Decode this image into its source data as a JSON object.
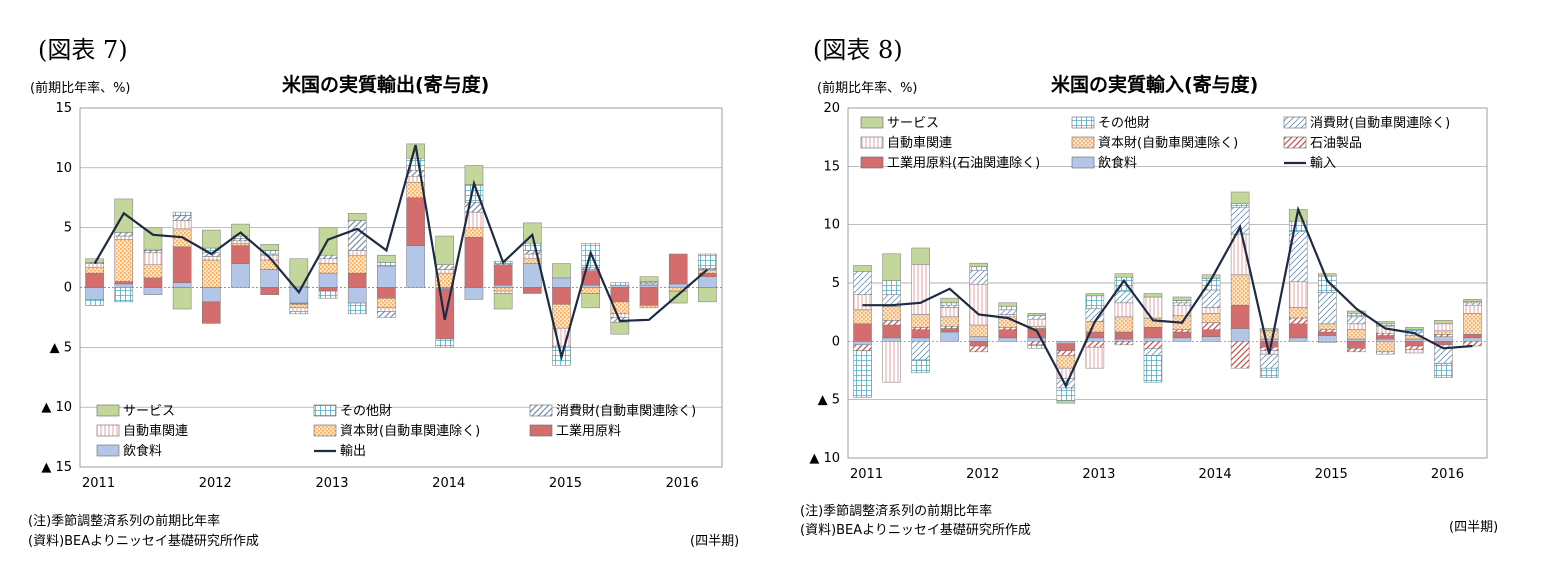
{
  "left": {
    "fig_label": "(図表 7)",
    "unit_label": "(前期比年率、%)",
    "title": "米国の実質輸出(寄与度)",
    "note": "(注)季節調整済系列の前期比年率",
    "source": "(資料)BEAよりニッセイ基礎研究所作成",
    "quarter_label": "(四半期)"
  },
  "right": {
    "fig_label": "(図表 8)",
    "unit_label": "(前期比年率、%)",
    "title": "米国の実質輸入(寄与度)",
    "note": "(注)季節調整済系列の前期比年率",
    "source": "(資料)BEAよりニッセイ基礎研究所作成",
    "quarter_label": "(四半期)"
  },
  "chart_data": [
    {
      "type": "bar",
      "stacked": true,
      "title": "米国の実質輸出(寄与度)",
      "ylim": [
        -15,
        15
      ],
      "yticks": [
        15,
        10,
        5,
        0,
        -5,
        -10,
        -15
      ],
      "ytick_labels": [
        "15",
        "10",
        "5",
        "0",
        "▲ 5",
        "▲ 10",
        "▲ 15"
      ],
      "year_labels": [
        "2011",
        "2012",
        "2013",
        "2014",
        "2015",
        "2016"
      ],
      "categories": [
        "2011Q1",
        "2011Q2",
        "2011Q3",
        "2011Q4",
        "2012Q1",
        "2012Q2",
        "2012Q3",
        "2012Q4",
        "2013Q1",
        "2013Q2",
        "2013Q3",
        "2013Q4",
        "2014Q1",
        "2014Q2",
        "2014Q3",
        "2014Q4",
        "2015Q1",
        "2015Q2",
        "2015Q3",
        "2015Q4",
        "2016Q1",
        "2016Q2"
      ],
      "grid": true,
      "legend_position": "bottom",
      "series": [
        {
          "name": "飲食料",
          "color": "#b4c6e7",
          "pattern": "solid",
          "values": [
            -1.0,
            0.3,
            -0.6,
            0.4,
            -1.2,
            2.0,
            1.5,
            -1.3,
            1.2,
            -1.3,
            1.8,
            3.5,
            -0.1,
            -1.0,
            0.2,
            2.0,
            0.8,
            0.2,
            0.2,
            0.2,
            0.3,
            0.9
          ]
        },
        {
          "name": "工業用原料",
          "color": "#d46e6e",
          "pattern": "solid",
          "values": [
            1.2,
            0.2,
            0.8,
            3.0,
            -1.8,
            1.5,
            -0.6,
            -0.1,
            -0.3,
            1.2,
            -0.9,
            4.0,
            -4.2,
            4.2,
            1.7,
            -0.5,
            -1.4,
            1.2,
            -1.2,
            -1.5,
            2.5,
            0.3
          ]
        },
        {
          "name": "資本財(自動車関連除く)",
          "color": "#f2a65a",
          "pattern": "dots",
          "values": [
            0.5,
            3.5,
            1.1,
            1.5,
            2.3,
            0.2,
            0.8,
            -0.3,
            0.8,
            1.5,
            -0.8,
            1.3,
            1.2,
            0.8,
            -0.3,
            0.4,
            -2.0,
            -0.5,
            -1.0,
            -0.2,
            -0.3,
            0.2
          ]
        },
        {
          "name": "自動車関連",
          "color": "#e8a0a0",
          "pattern": "vlines",
          "values": [
            0.3,
            0.3,
            1.0,
            0.7,
            0.3,
            0.2,
            0.4,
            -0.3,
            0.4,
            0.4,
            -0.3,
            0.5,
            0.3,
            1.3,
            -0.2,
            0.4,
            -1.5,
            0.1,
            -0.3,
            0.1,
            0.0,
            0.1
          ]
        },
        {
          "name": "消費財(自動車関連除く)",
          "color": "#6f8fb2",
          "pattern": "diag",
          "values": [
            0.1,
            0.3,
            0.2,
            0.4,
            0.3,
            0.2,
            0.1,
            0.1,
            0.3,
            2.5,
            -0.5,
            0.5,
            0.4,
            0.8,
            0.1,
            0.3,
            -0.1,
            0.2,
            -0.4,
            0.1,
            0.0,
            0.1
          ]
        },
        {
          "name": "その他財",
          "color": "#4bacc6",
          "pattern": "grid",
          "values": [
            -0.5,
            -1.2,
            0.1,
            0.3,
            0.4,
            0.2,
            0.3,
            -0.2,
            -0.6,
            -0.9,
            0.3,
            1.0,
            -0.7,
            1.5,
            0.2,
            0.6,
            -1.5,
            2.0,
            0.2,
            0.1,
            0.0,
            1.2
          ]
        },
        {
          "name": "サービス",
          "color": "#c4d79b",
          "pattern": "solid",
          "values": [
            0.3,
            2.8,
            1.8,
            -1.8,
            1.5,
            1.0,
            0.5,
            2.3,
            2.3,
            0.6,
            0.6,
            1.2,
            2.4,
            1.6,
            -1.3,
            1.7,
            1.2,
            -1.2,
            -1.0,
            0.4,
            -1.0,
            -1.2
          ]
        }
      ],
      "line": {
        "name": "輸出",
        "color": "#1f2a44",
        "values": [
          2.0,
          6.2,
          4.4,
          4.2,
          2.8,
          4.6,
          2.5,
          -0.4,
          4.0,
          4.9,
          3.1,
          11.9,
          -2.7,
          8.7,
          2.1,
          4.4,
          -5.8,
          2.9,
          -2.8,
          -2.7,
          -0.6,
          1.5
        ]
      }
    },
    {
      "type": "bar",
      "stacked": true,
      "title": "米国の実質輸入(寄与度)",
      "ylim": [
        -10,
        20
      ],
      "yticks": [
        20,
        15,
        10,
        5,
        0,
        -5,
        -10
      ],
      "ytick_labels": [
        "20",
        "15",
        "10",
        "5",
        "0",
        "▲ 5",
        "▲ 10"
      ],
      "year_labels": [
        "2011",
        "2012",
        "2013",
        "2014",
        "2015",
        "2016"
      ],
      "categories": [
        "2011Q1",
        "2011Q2",
        "2011Q3",
        "2011Q4",
        "2012Q1",
        "2012Q2",
        "2012Q3",
        "2012Q4",
        "2013Q1",
        "2013Q2",
        "2013Q3",
        "2013Q4",
        "2014Q1",
        "2014Q2",
        "2014Q3",
        "2014Q4",
        "2015Q1",
        "2015Q2",
        "2015Q3",
        "2015Q4",
        "2016Q1",
        "2016Q2"
      ],
      "grid": true,
      "legend_position": "top",
      "series": [
        {
          "name": "飲食料",
          "color": "#b4c6e7",
          "pattern": "solid",
          "values": [
            -0.3,
            0.3,
            0.3,
            0.8,
            0.4,
            0.3,
            0.3,
            -0.2,
            0.3,
            0.2,
            0.3,
            0.3,
            0.4,
            1.1,
            0.2,
            0.3,
            0.5,
            0.2,
            0.2,
            0.2,
            0.4,
            0.3
          ]
        },
        {
          "name": "工業用原料(石油関連除く)",
          "color": "#d46e6e",
          "pattern": "solid",
          "values": [
            1.5,
            1.1,
            0.7,
            0.3,
            -0.4,
            0.7,
            0.8,
            -0.6,
            0.5,
            0.6,
            0.9,
            0.5,
            0.6,
            2.0,
            -0.5,
            1.2,
            0.3,
            -0.6,
            0.3,
            -0.4,
            -0.3,
            0.3
          ]
        },
        {
          "name": "石油製品",
          "color": "#c0504d",
          "pattern": "diag",
          "values": [
            -0.5,
            0.4,
            0.2,
            0.2,
            -0.5,
            0.2,
            -0.3,
            -0.4,
            -0.5,
            -0.3,
            -0.6,
            0.2,
            0.6,
            -2.3,
            -0.3,
            0.5,
            0.2,
            -0.3,
            0.2,
            -0.3,
            0.2,
            -0.4
          ]
        },
        {
          "name": "資本財(自動車関連除く)",
          "color": "#f2a65a",
          "pattern": "dots",
          "values": [
            1.2,
            1.2,
            1.1,
            0.8,
            1.0,
            0.9,
            0.2,
            -1.1,
            0.9,
            1.3,
            0.8,
            1.2,
            0.8,
            2.6,
            0.7,
            0.9,
            0.5,
            0.8,
            -0.9,
            0.3,
            0.3,
            1.8
          ]
        },
        {
          "name": "自動車関連",
          "color": "#e8a0a0",
          "pattern": "vlines",
          "values": [
            1.3,
            -3.5,
            4.3,
            0.8,
            3.5,
            0.2,
            0.6,
            -0.9,
            -1.8,
            1.2,
            1.8,
            0.9,
            0.5,
            3.5,
            -0.3,
            2.2,
            -0.1,
            0.5,
            0.6,
            -0.3,
            0.6,
            0.7
          ]
        },
        {
          "name": "消費財(自動車関連除く)",
          "color": "#6f8fb2",
          "pattern": "diag-light",
          "values": [
            2.0,
            1.0,
            -1.6,
            0.2,
            1.2,
            0.4,
            0.3,
            -0.8,
            1.1,
            1.0,
            -0.6,
            0.2,
            1.5,
            2.3,
            -1.2,
            4.3,
            2.7,
            0.6,
            -0.2,
            0.3,
            -1.6,
            0.2
          ]
        },
        {
          "name": "その他財",
          "color": "#4bacc6",
          "pattern": "grid",
          "values": [
            -4.0,
            1.2,
            -1.1,
            0.2,
            0.3,
            0.3,
            -0.3,
            -1.1,
            1.1,
            1.2,
            -2.3,
            0.2,
            1.0,
            0.3,
            -0.8,
            0.9,
            1.4,
            0.3,
            0.2,
            0.2,
            -1.2,
            0.1
          ]
        },
        {
          "name": "サービス",
          "color": "#c4d79b",
          "pattern": "solid",
          "values": [
            0.5,
            2.3,
            1.4,
            0.4,
            0.3,
            0.3,
            0.2,
            -0.2,
            0.2,
            0.3,
            0.3,
            0.3,
            0.3,
            1.0,
            0.2,
            1.0,
            0.2,
            0.2,
            0.2,
            0.2,
            0.3,
            0.2
          ]
        }
      ],
      "line": {
        "name": "輸入",
        "color": "#1f2a44",
        "values": [
          3.1,
          3.1,
          3.3,
          4.5,
          2.3,
          2.0,
          0.9,
          -3.8,
          1.7,
          5.2,
          1.8,
          1.6,
          5.3,
          9.8,
          -1.1,
          11.3,
          5.2,
          2.8,
          1.1,
          0.7,
          -0.6,
          -0.4
        ]
      }
    }
  ]
}
